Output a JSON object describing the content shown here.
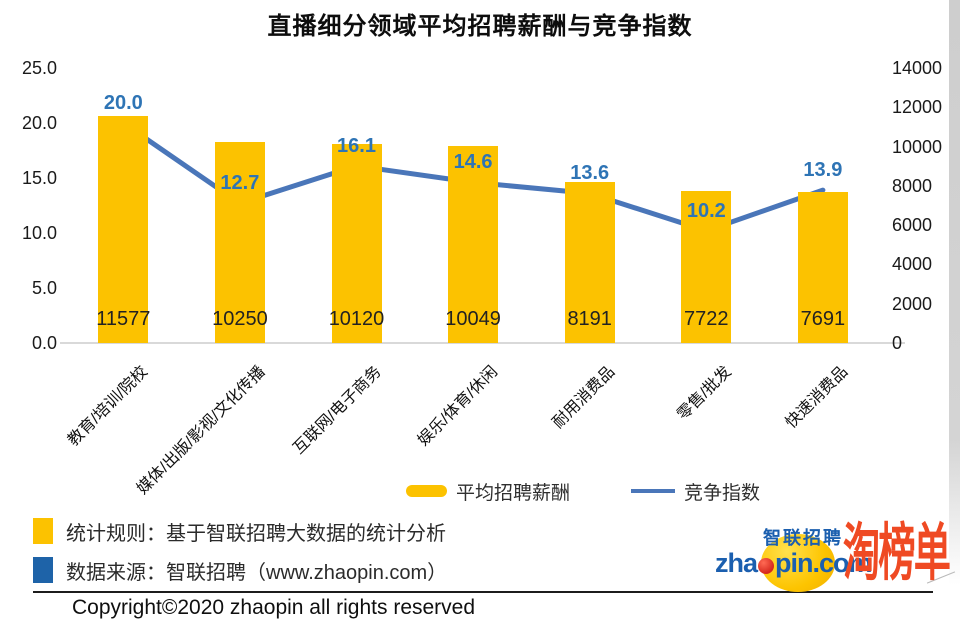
{
  "chart_data": {
    "type": "bar+line",
    "title": "直播细分领域平均招聘薪酬与竞争指数",
    "categories": [
      "教育/培训/院校",
      "媒体/出版/影视/文化传播",
      "互联网/电子商务",
      "娱乐/体育/休闲",
      "耐用消费品",
      "零售/批发",
      "快速消费品"
    ],
    "series": [
      {
        "name": "平均招聘薪酬",
        "type": "bar",
        "axis": "right",
        "values": [
          11577,
          10250,
          10120,
          10049,
          8191,
          7722,
          7691
        ],
        "color": "#FCC200",
        "value_label_color": "#222222"
      },
      {
        "name": "竞争指数",
        "type": "line",
        "axis": "left",
        "values": [
          20.0,
          12.7,
          16.1,
          14.6,
          13.6,
          10.2,
          13.9
        ],
        "color": "#4A76B9",
        "label_color": "#2E74B5"
      }
    ],
    "left_axis": {
      "min": 0,
      "max": 25,
      "ticks": [
        "25.0",
        "20.0",
        "15.0",
        "10.0",
        "5.0",
        "0.0"
      ]
    },
    "right_axis": {
      "min": 0,
      "max": 14000,
      "ticks": [
        "14000",
        "12000",
        "10000",
        "8000",
        "6000",
        "4000",
        "2000",
        "0"
      ]
    },
    "grid": false,
    "legend_position": "bottom"
  },
  "footnotes": [
    {
      "swatch_color": "#FCC200",
      "text": "统计规则：基于智联招聘大数据的统计分析"
    },
    {
      "swatch_color": "#1E63A8",
      "text": "数据来源：智联招聘（www.zhaopin.com）"
    }
  ],
  "copyright": "Copyright©2020 zhaopin all rights reserved",
  "logos": {
    "zhaopin_cn": "智联招聘",
    "zhaopin_domain_pre": "zha",
    "zhaopin_domain_post": "pin.com",
    "tao": "淘榜单"
  },
  "colors": {
    "bar": "#FCC200",
    "line": "#4A76B9",
    "line_label": "#2E74B5",
    "footnote_blue": "#1E63A8",
    "logo_blue": "#1B5FAF",
    "logo_red": "#D5281E",
    "tao_orange": "#EF4A23",
    "baseline_gray": "#D9D9D9"
  }
}
